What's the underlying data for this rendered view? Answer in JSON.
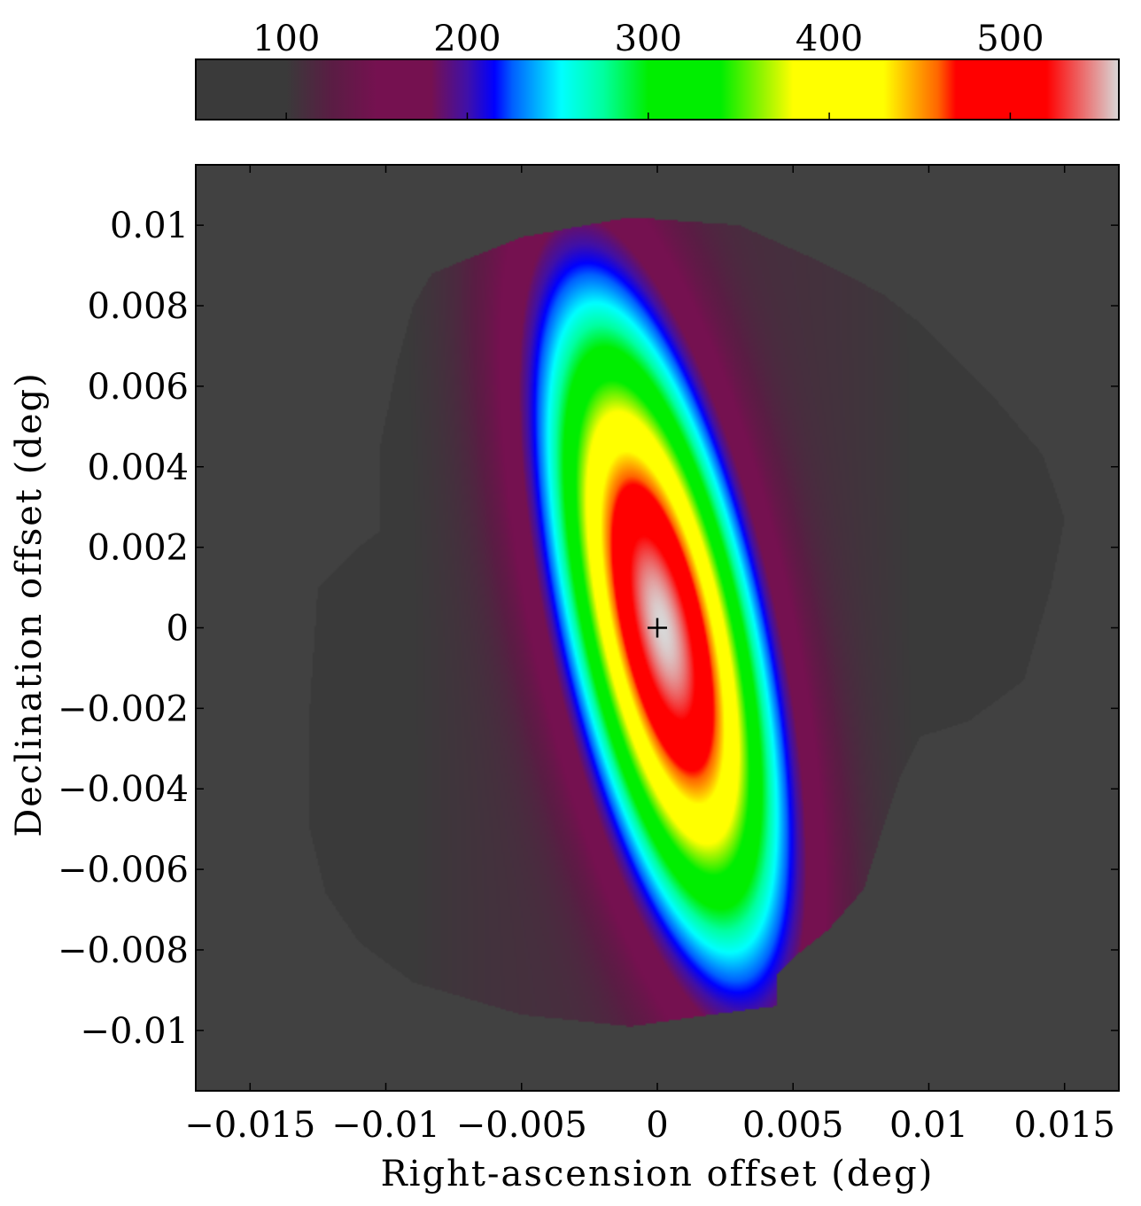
{
  "chart_data": {
    "type": "heatmap",
    "title": "",
    "xlabel": "Right-ascension offset (deg)",
    "ylabel": "Declination offset (deg)",
    "xlim": [
      -0.017,
      0.017
    ],
    "ylim": [
      -0.0115,
      0.0115
    ],
    "x_ticks": [
      {
        "value": -0.015,
        "label": "−0.015"
      },
      {
        "value": -0.01,
        "label": "−0.01"
      },
      {
        "value": -0.005,
        "label": "−0.005"
      },
      {
        "value": 0,
        "label": "0"
      },
      {
        "value": 0.005,
        "label": "0.005"
      },
      {
        "value": 0.01,
        "label": "0.01"
      },
      {
        "value": 0.015,
        "label": "0.015"
      }
    ],
    "y_ticks": [
      {
        "value": 0.01,
        "label": "0.01"
      },
      {
        "value": 0.008,
        "label": "0.008"
      },
      {
        "value": 0.006,
        "label": "0.006"
      },
      {
        "value": 0.004,
        "label": "0.004"
      },
      {
        "value": 0.002,
        "label": "0.002"
      },
      {
        "value": 0,
        "label": "0"
      },
      {
        "value": -0.002,
        "label": "−0.002"
      },
      {
        "value": -0.004,
        "label": "−0.004"
      },
      {
        "value": -0.006,
        "label": "−0.006"
      },
      {
        "value": -0.008,
        "label": "−0.008"
      },
      {
        "value": -0.01,
        "label": "−0.01"
      }
    ],
    "colorbar": {
      "position": "top",
      "range": [
        50,
        560
      ],
      "ticks": [
        {
          "value": 100,
          "label": "100"
        },
        {
          "value": 200,
          "label": "200"
        },
        {
          "value": 300,
          "label": "300"
        },
        {
          "value": 400,
          "label": "400"
        },
        {
          "value": 500,
          "label": "500"
        }
      ],
      "stops": [
        {
          "value": 50,
          "color": "#3a3a3a"
        },
        {
          "value": 100,
          "color": "#3a3a3a"
        },
        {
          "value": 125,
          "color": "#5a1d44"
        },
        {
          "value": 150,
          "color": "#751150"
        },
        {
          "value": 180,
          "color": "#751150"
        },
        {
          "value": 200,
          "color": "#4010a8"
        },
        {
          "value": 215,
          "color": "#0000ff"
        },
        {
          "value": 225,
          "color": "#0060ff"
        },
        {
          "value": 252,
          "color": "#00ffff"
        },
        {
          "value": 275,
          "color": "#00ffa0"
        },
        {
          "value": 300,
          "color": "#00ee00"
        },
        {
          "value": 340,
          "color": "#00ee00"
        },
        {
          "value": 365,
          "color": "#a0f500"
        },
        {
          "value": 380,
          "color": "#ffff00"
        },
        {
          "value": 430,
          "color": "#ffff00"
        },
        {
          "value": 460,
          "color": "#ff6600"
        },
        {
          "value": 470,
          "color": "#ff0000"
        },
        {
          "value": 520,
          "color": "#ff0000"
        },
        {
          "value": 560,
          "color": "#d8d8d8"
        }
      ]
    },
    "background_color": "#414141",
    "field": {
      "peak_value": 560,
      "peak_location": [
        0,
        0
      ],
      "center": [
        0.0002,
        0.0
      ],
      "semi_major_axis": 0.0092,
      "semi_minor_axis": 0.0035,
      "orientation_deg_from_north": -20,
      "outer_floor_value": 110,
      "coverage_outline": [
        [
          -0.0083,
          0.0088
        ],
        [
          -0.005,
          0.0097
        ],
        [
          -0.001,
          0.0102
        ],
        [
          0.003,
          0.01
        ],
        [
          0.006,
          0.0091
        ],
        [
          0.0083,
          0.0083
        ],
        [
          0.0098,
          0.0075
        ],
        [
          0.0123,
          0.0058
        ],
        [
          0.0142,
          0.0043
        ],
        [
          0.015,
          0.0027
        ],
        [
          0.0145,
          0.001
        ],
        [
          0.0135,
          -0.0013
        ],
        [
          0.0115,
          -0.0023
        ],
        [
          0.0097,
          -0.0027
        ],
        [
          0.009,
          -0.0036
        ],
        [
          0.0083,
          -0.005
        ],
        [
          0.0076,
          -0.0065
        ],
        [
          0.0063,
          -0.0075
        ],
        [
          0.005,
          -0.0082
        ],
        [
          0.0044,
          -0.0086
        ],
        [
          0.0044,
          -0.0094
        ],
        [
          0.002,
          -0.0096
        ],
        [
          -0.001,
          -0.0099
        ],
        [
          -0.005,
          -0.0096
        ],
        [
          -0.009,
          -0.0088
        ],
        [
          -0.011,
          -0.0078
        ],
        [
          -0.0122,
          -0.0066
        ],
        [
          -0.0128,
          -0.005
        ],
        [
          -0.0128,
          -0.002
        ],
        [
          -0.0125,
          0.001
        ],
        [
          -0.011,
          0.002
        ],
        [
          -0.0102,
          0.0024
        ],
        [
          -0.0102,
          0.0045
        ],
        [
          -0.0096,
          0.0065
        ],
        [
          -0.009,
          0.008
        ]
      ]
    },
    "marker": {
      "x": 0,
      "y": 0,
      "symbol": "+"
    }
  }
}
